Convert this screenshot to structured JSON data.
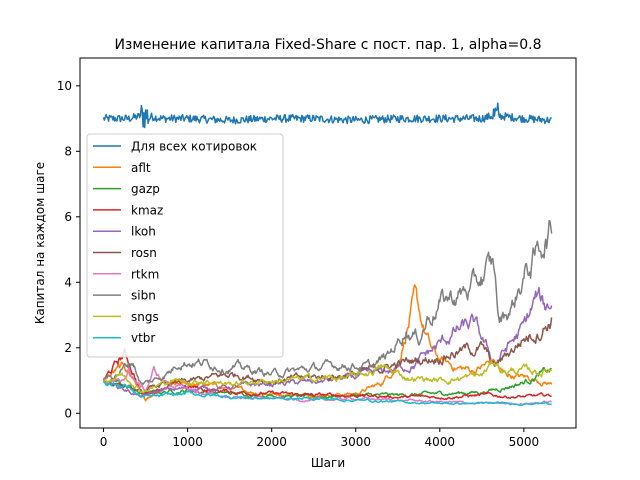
{
  "chart_data": {
    "type": "line",
    "title": "Изменение капитала Fixed-Share с пост. пар. 1, alpha=0.8",
    "xlabel": "Шаги",
    "ylabel": "Капитал на каждом шаге",
    "xlim": [
      -280,
      5620
    ],
    "ylim": [
      -0.45,
      10.85
    ],
    "xticks": [
      0,
      1000,
      2000,
      3000,
      4000,
      5000
    ],
    "yticks": [
      0,
      2,
      4,
      6,
      8,
      10
    ],
    "xtick_labels": [
      "0",
      "1000",
      "2000",
      "3000",
      "4000",
      "5000"
    ],
    "ytick_labels": [
      "0",
      "2",
      "4",
      "6",
      "8",
      "10"
    ],
    "grid": false,
    "legend_placement": "center-left",
    "x_end": 5330,
    "series": [
      {
        "name": "Для всех котировок",
        "color": "#1f77b4",
        "points": [
          [
            0,
            9.0
          ],
          [
            300,
            9.0
          ],
          [
            480,
            9.1
          ],
          [
            700,
            9.0
          ],
          [
            1000,
            9.0
          ],
          [
            1500,
            8.95
          ],
          [
            2000,
            9.0
          ],
          [
            2500,
            9.0
          ],
          [
            3000,
            8.95
          ],
          [
            3500,
            9.0
          ],
          [
            4000,
            9.0
          ],
          [
            4500,
            9.0
          ],
          [
            4650,
            9.1
          ],
          [
            5000,
            9.0
          ],
          [
            5330,
            8.95
          ]
        ]
      },
      {
        "name": "aflt",
        "color": "#ff7f0e",
        "points": [
          [
            0,
            1.0
          ],
          [
            150,
            1.3
          ],
          [
            250,
            1.4
          ],
          [
            350,
            1.1
          ],
          [
            450,
            0.7
          ],
          [
            500,
            0.4
          ],
          [
            650,
            0.6
          ],
          [
            800,
            0.8
          ],
          [
            1000,
            0.9
          ],
          [
            1300,
            0.85
          ],
          [
            1600,
            0.7
          ],
          [
            2000,
            0.6
          ],
          [
            2500,
            0.55
          ],
          [
            3000,
            0.6
          ],
          [
            3300,
            0.9
          ],
          [
            3500,
            1.5
          ],
          [
            3600,
            2.5
          ],
          [
            3700,
            3.4
          ],
          [
            3800,
            2.6
          ],
          [
            3900,
            1.9
          ],
          [
            4000,
            1.6
          ],
          [
            4200,
            1.4
          ],
          [
            4400,
            1.3
          ],
          [
            4650,
            1.6
          ],
          [
            4750,
            1.2
          ],
          [
            5000,
            1.1
          ],
          [
            5200,
            1.0
          ],
          [
            5330,
            0.9
          ]
        ]
      },
      {
        "name": "gazp",
        "color": "#2ca02c",
        "points": [
          [
            0,
            1.0
          ],
          [
            200,
            0.9
          ],
          [
            450,
            0.6
          ],
          [
            700,
            0.65
          ],
          [
            1000,
            0.7
          ],
          [
            1500,
            0.6
          ],
          [
            2000,
            0.55
          ],
          [
            2500,
            0.5
          ],
          [
            3000,
            0.55
          ],
          [
            3500,
            0.55
          ],
          [
            4000,
            0.6
          ],
          [
            4500,
            0.65
          ],
          [
            4700,
            0.75
          ],
          [
            5000,
            0.95
          ],
          [
            5200,
            1.2
          ],
          [
            5330,
            1.3
          ]
        ]
      },
      {
        "name": "kmaz",
        "color": "#d62728",
        "points": [
          [
            0,
            1.0
          ],
          [
            150,
            1.5
          ],
          [
            250,
            1.8
          ],
          [
            350,
            1.3
          ],
          [
            450,
            0.6
          ],
          [
            600,
            0.7
          ],
          [
            800,
            0.9
          ],
          [
            1000,
            0.8
          ],
          [
            1300,
            0.7
          ],
          [
            1600,
            0.65
          ],
          [
            2000,
            0.6
          ],
          [
            2500,
            0.55
          ],
          [
            3000,
            0.55
          ],
          [
            3500,
            0.5
          ],
          [
            4000,
            0.5
          ],
          [
            4500,
            0.55
          ],
          [
            5000,
            0.5
          ],
          [
            5330,
            0.55
          ]
        ]
      },
      {
        "name": "lkoh",
        "color": "#9467bd",
        "points": [
          [
            0,
            1.0
          ],
          [
            200,
            0.8
          ],
          [
            450,
            0.5
          ],
          [
            700,
            0.7
          ],
          [
            1000,
            0.75
          ],
          [
            1500,
            0.8
          ],
          [
            2000,
            0.9
          ],
          [
            2500,
            0.95
          ],
          [
            3000,
            1.1
          ],
          [
            3400,
            1.3
          ],
          [
            3700,
            1.5
          ],
          [
            4000,
            2.1
          ],
          [
            4200,
            2.5
          ],
          [
            4400,
            2.7
          ],
          [
            4650,
            1.5
          ],
          [
            4800,
            2.0
          ],
          [
            5000,
            2.6
          ],
          [
            5150,
            3.5
          ],
          [
            5250,
            3.2
          ],
          [
            5330,
            3.4
          ]
        ]
      },
      {
        "name": "rosn",
        "color": "#8c564b",
        "points": [
          [
            0,
            1.0
          ],
          [
            200,
            0.9
          ],
          [
            450,
            0.6
          ],
          [
            700,
            0.9
          ],
          [
            1000,
            0.95
          ],
          [
            1300,
            1.1
          ],
          [
            1600,
            1.2
          ],
          [
            2000,
            1.0
          ],
          [
            2500,
            1.1
          ],
          [
            3000,
            1.2
          ],
          [
            3500,
            1.5
          ],
          [
            4000,
            1.75
          ],
          [
            4200,
            1.9
          ],
          [
            4500,
            2.0
          ],
          [
            4650,
            1.4
          ],
          [
            4800,
            1.8
          ],
          [
            5000,
            2.3
          ],
          [
            5200,
            2.6
          ],
          [
            5330,
            2.9
          ]
        ]
      },
      {
        "name": "rtkm",
        "color": "#e377c2",
        "points": [
          [
            0,
            1.0
          ],
          [
            200,
            0.9
          ],
          [
            300,
            1.3
          ],
          [
            400,
            0.9
          ],
          [
            500,
            0.7
          ],
          [
            600,
            1.3
          ],
          [
            700,
            1.0
          ],
          [
            900,
            0.8
          ],
          [
            1200,
            0.6
          ],
          [
            1500,
            0.5
          ],
          [
            2000,
            0.45
          ],
          [
            2500,
            0.4
          ],
          [
            3000,
            0.45
          ],
          [
            3500,
            0.4
          ],
          [
            4000,
            0.35
          ],
          [
            4500,
            0.3
          ],
          [
            5000,
            0.3
          ],
          [
            5330,
            0.35
          ]
        ]
      },
      {
        "name": "sibn",
        "color": "#7f7f7f",
        "points": [
          [
            0,
            1.0
          ],
          [
            200,
            1.3
          ],
          [
            350,
            1.6
          ],
          [
            450,
            0.9
          ],
          [
            600,
            1.0
          ],
          [
            800,
            1.3
          ],
          [
            900,
            1.6
          ],
          [
            1000,
            1.6
          ],
          [
            1300,
            1.5
          ],
          [
            1600,
            1.4
          ],
          [
            1800,
            1.3
          ],
          [
            2000,
            1.2
          ],
          [
            2300,
            1.3
          ],
          [
            2600,
            1.4
          ],
          [
            2900,
            1.5
          ],
          [
            3200,
            1.4
          ],
          [
            3400,
            1.8
          ],
          [
            3600,
            2.6
          ],
          [
            3750,
            2.3
          ],
          [
            3850,
            2.9
          ],
          [
            4000,
            3.4
          ],
          [
            4200,
            3.6
          ],
          [
            4400,
            3.8
          ],
          [
            4550,
            4.3
          ],
          [
            4650,
            4.4
          ],
          [
            4700,
            2.8
          ],
          [
            4850,
            3.2
          ],
          [
            5000,
            4.2
          ],
          [
            5150,
            4.8
          ],
          [
            5250,
            5.4
          ],
          [
            5330,
            5.6
          ]
        ]
      },
      {
        "name": "sngs",
        "color": "#bcbd22",
        "points": [
          [
            0,
            1.0
          ],
          [
            200,
            1.2
          ],
          [
            350,
            1.0
          ],
          [
            450,
            0.7
          ],
          [
            600,
            0.8
          ],
          [
            800,
            1.0
          ],
          [
            1000,
            0.95
          ],
          [
            1200,
            1.0
          ],
          [
            1500,
            0.9
          ],
          [
            2000,
            1.0
          ],
          [
            2500,
            1.05
          ],
          [
            3000,
            1.1
          ],
          [
            3300,
            1.4
          ],
          [
            3600,
            1.1
          ],
          [
            4000,
            1.0
          ],
          [
            4300,
            1.1
          ],
          [
            4500,
            1.15
          ],
          [
            4650,
            1.6
          ],
          [
            4750,
            1.3
          ],
          [
            5000,
            1.3
          ],
          [
            5200,
            1.25
          ],
          [
            5330,
            1.35
          ]
        ]
      },
      {
        "name": "vtbr",
        "color": "#17becf",
        "points": [
          [
            0,
            1.0
          ],
          [
            150,
            0.9
          ],
          [
            300,
            0.8
          ],
          [
            450,
            0.5
          ],
          [
            600,
            0.5
          ],
          [
            800,
            0.55
          ],
          [
            1000,
            0.6
          ],
          [
            1500,
            0.5
          ],
          [
            2000,
            0.45
          ],
          [
            2500,
            0.45
          ],
          [
            3000,
            0.4
          ],
          [
            3500,
            0.35
          ],
          [
            4000,
            0.3
          ],
          [
            4500,
            0.3
          ],
          [
            5000,
            0.3
          ],
          [
            5330,
            0.3
          ]
        ]
      }
    ]
  }
}
